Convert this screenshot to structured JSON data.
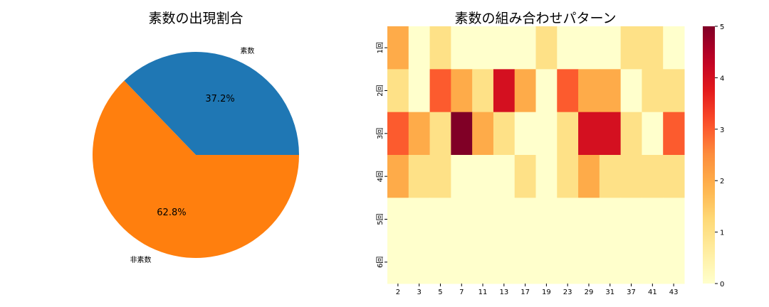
{
  "chart_data": [
    {
      "type": "pie",
      "title": "素数の出現割合",
      "labels": [
        "素数",
        "非素数"
      ],
      "values": [
        37.2,
        62.8
      ],
      "pct_labels": [
        "37.2%",
        "62.8%"
      ],
      "colors": [
        "#1f77b4",
        "#ff7f0e"
      ]
    },
    {
      "type": "heatmap",
      "title": "素数の組み合わせパターン",
      "x_categories": [
        "2",
        "3",
        "5",
        "7",
        "11",
        "13",
        "17",
        "19",
        "23",
        "29",
        "31",
        "37",
        "41",
        "43"
      ],
      "y_categories": [
        "1回",
        "2回",
        "3回",
        "4回",
        "5回",
        "6回"
      ],
      "values": [
        [
          2,
          0,
          1,
          0,
          0,
          0,
          0,
          1,
          0,
          0,
          0,
          1,
          1,
          0
        ],
        [
          1,
          0,
          3,
          2,
          1,
          4,
          2,
          0,
          3,
          2,
          2,
          0,
          1,
          1
        ],
        [
          3,
          2,
          1,
          5,
          2,
          1,
          0,
          0,
          1,
          4,
          4,
          1,
          0,
          3
        ],
        [
          2,
          1,
          1,
          0,
          0,
          0,
          1,
          0,
          1,
          2,
          1,
          1,
          1,
          1
        ],
        [
          0,
          0,
          0,
          0,
          0,
          0,
          0,
          0,
          0,
          0,
          0,
          0,
          0,
          0
        ],
        [
          0,
          0,
          0,
          0,
          0,
          0,
          0,
          0,
          0,
          0,
          0,
          0,
          0,
          0
        ]
      ],
      "colormap": "YlOrRd",
      "vmin": 0,
      "vmax": 5,
      "colorbar_ticks": [
        "0",
        "1",
        "2",
        "3",
        "4",
        "5"
      ]
    }
  ]
}
